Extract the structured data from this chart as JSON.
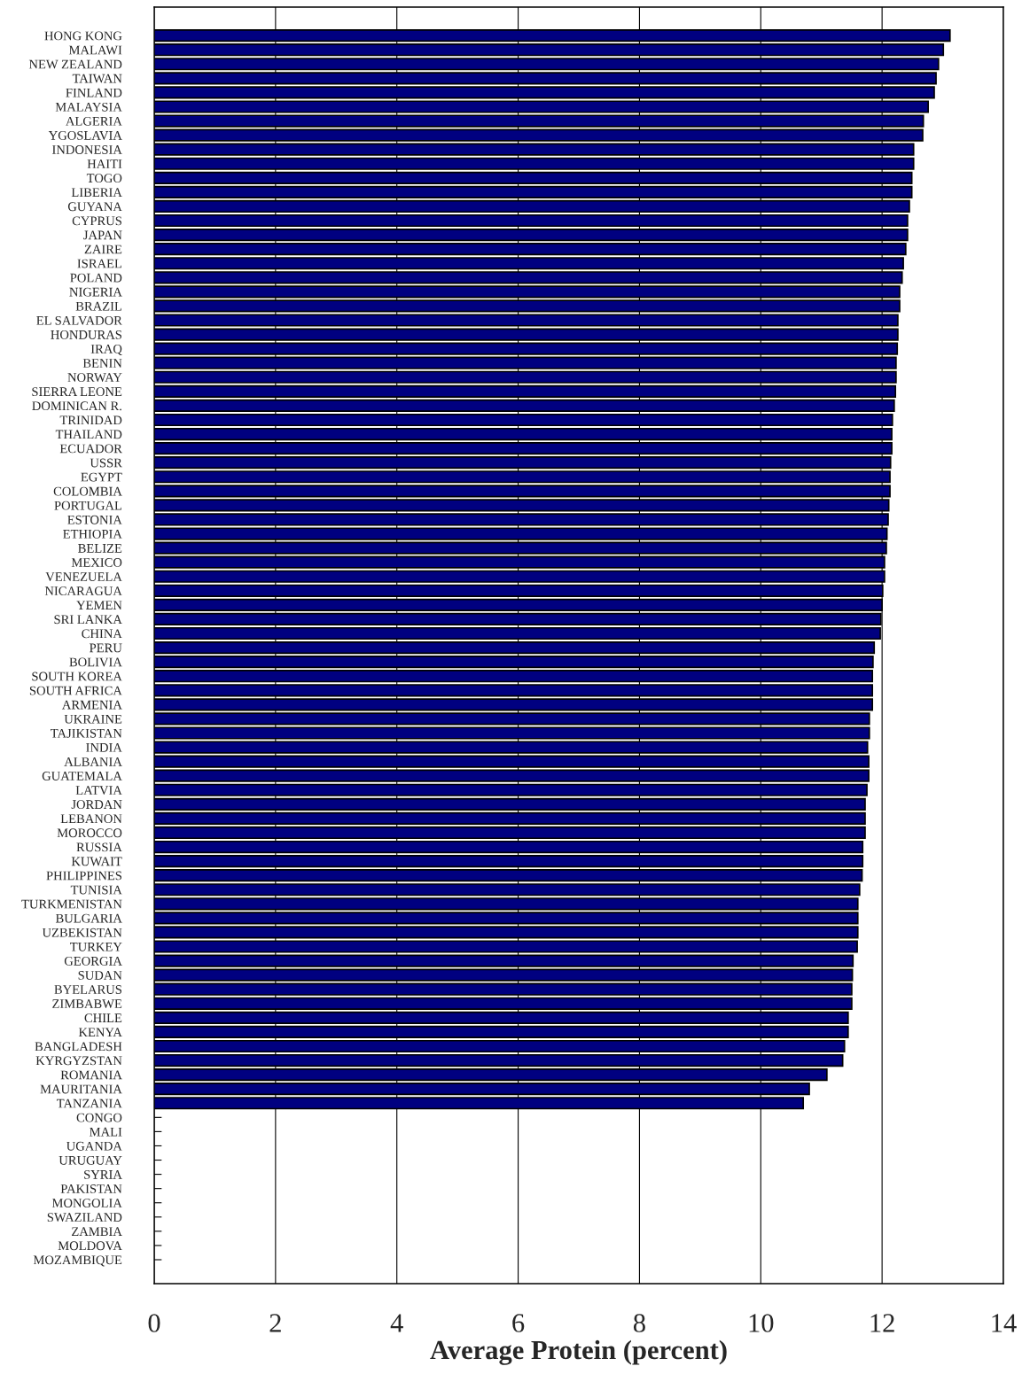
{
  "chart_data": {
    "type": "bar",
    "orientation": "horizontal",
    "xlabel": "Average Protein (percent)",
    "categories": [
      "HONG KONG",
      "MALAWI",
      "NEW ZEALAND",
      "TAIWAN",
      "FINLAND",
      "MALAYSIA",
      "ALGERIA",
      "YGOSLAVIA",
      "INDONESIA",
      "HAITI",
      "TOGO",
      "LIBERIA",
      "GUYANA",
      "CYPRUS",
      "JAPAN",
      "ZAIRE",
      "ISRAEL",
      "POLAND",
      "NIGERIA",
      "BRAZIL",
      "EL SALVADOR",
      "HONDURAS",
      "IRAQ",
      "BENIN",
      "NORWAY",
      "SIERRA LEONE",
      "DOMINICAN R.",
      "TRINIDAD",
      "THAILAND",
      "ECUADOR",
      "USSR",
      "EGYPT",
      "COLOMBIA",
      "PORTUGAL",
      "ESTONIA",
      "ETHIOPIA",
      "BELIZE",
      "MEXICO",
      "VENEZUELA",
      "NICARAGUA",
      "YEMEN",
      "SRI LANKA",
      "CHINA",
      "PERU",
      "BOLIVIA",
      "SOUTH KOREA",
      "SOUTH AFRICA",
      "ARMENIA",
      "UKRAINE",
      "TAJIKISTAN",
      "INDIA",
      "ALBANIA",
      "GUATEMALA",
      "LATVIA",
      "JORDAN",
      "LEBANON",
      "MOROCCO",
      "RUSSIA",
      "KUWAIT",
      "PHILIPPINES",
      "TUNISIA",
      "TURKMENISTAN",
      "BULGARIA",
      "UZBEKISTAN",
      "TURKEY",
      "GEORGIA",
      "SUDAN",
      "BYELARUS",
      "ZIMBABWE",
      "CHILE",
      "KENYA",
      "BANGLADESH",
      "KYRGYZSTAN",
      "ROMANIA",
      "MAURITANIA",
      "TANZANIA",
      "CONGO",
      "MALI",
      "UGANDA",
      "URUGUAY",
      "SYRIA",
      "PAKISTAN",
      "MONGOLIA",
      "SWAZILAND",
      "ZAMBIA",
      "MOLDOVA",
      "MOZAMBIQUE"
    ],
    "values": [
      13.12,
      13.01,
      12.93,
      12.89,
      12.86,
      12.76,
      12.68,
      12.67,
      12.52,
      12.52,
      12.49,
      12.49,
      12.45,
      12.42,
      12.42,
      12.39,
      12.35,
      12.33,
      12.29,
      12.29,
      12.26,
      12.26,
      12.25,
      12.23,
      12.23,
      12.22,
      12.2,
      12.17,
      12.16,
      12.16,
      12.14,
      12.13,
      12.13,
      12.11,
      12.1,
      12.08,
      12.07,
      12.04,
      12.04,
      12.01,
      12.0,
      11.98,
      11.97,
      11.87,
      11.85,
      11.84,
      11.84,
      11.84,
      11.79,
      11.79,
      11.76,
      11.78,
      11.78,
      11.75,
      11.72,
      11.72,
      11.72,
      11.68,
      11.68,
      11.67,
      11.63,
      11.6,
      11.6,
      11.6,
      11.59,
      11.52,
      11.51,
      11.5,
      11.5,
      11.44,
      11.44,
      11.38,
      11.35,
      11.09,
      10.8,
      10.7,
      null,
      null,
      null,
      null,
      null,
      null,
      null,
      null,
      null,
      null,
      null
    ],
    "color": "#000080",
    "xlim": [
      0,
      14
    ],
    "xticks": [
      0,
      2,
      4,
      6,
      8,
      10,
      12,
      14
    ],
    "grid": "x"
  }
}
